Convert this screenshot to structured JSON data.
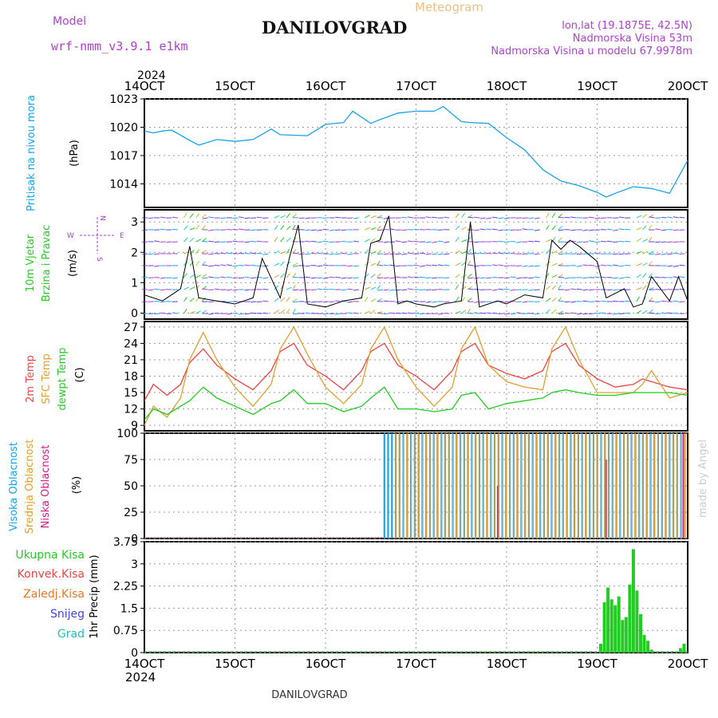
{
  "header": {
    "model_label": "Model",
    "model_name": "wrf-nmm_v3.9.1  e1km",
    "meteogram_label": "Meteogram",
    "station_title": "DANILOVGRAD",
    "lonlat": "lon,lat (19.1875E, 42.5N)",
    "elevation": "Nadmorska Visina 53m",
    "model_elevation": "Nadmorska Visina u modelu 67.9978m"
  },
  "footer": {
    "station": "DANILOVGRAD",
    "made_by": "made by Angel"
  },
  "colors": {
    "pressure": "#1aa3e8",
    "temp2m": "#ee4444",
    "sfc": "#e0a030",
    "dew": "#22cc22",
    "high": "#1aa3e8",
    "mid": "#e0a030",
    "low": "#cc2288",
    "precip": "#22cc22",
    "wind_label": "#a040d0"
  },
  "chart_data": [
    {
      "type": "line",
      "panel": "pressure",
      "ylabel": "Pritisak na nivou mora",
      "unit": "(hPa)",
      "ylim": [
        1011.5,
        1023
      ],
      "yticks": [
        "1014",
        "1017",
        "1020",
        "1023"
      ],
      "top_year": "2024",
      "bottom_year": "2024",
      "xticks": [
        "14OCT",
        "15OCT",
        "16OCT",
        "17OCT",
        "18OCT",
        "19OCT",
        "20OCT"
      ],
      "x_days": [
        14,
        20
      ],
      "series": [
        {
          "x": [
            14.0,
            14.1,
            14.2,
            14.3,
            14.5,
            14.6,
            14.8,
            15.0,
            15.2,
            15.4,
            15.5,
            15.8,
            16.0,
            16.2,
            16.3,
            16.5,
            16.6,
            16.8,
            17.0,
            17.2,
            17.3,
            17.5,
            17.6,
            17.8,
            18.0,
            18.2,
            18.4,
            18.6,
            18.8,
            19.0,
            19.1,
            19.2,
            19.4,
            19.6,
            19.8,
            20.0
          ],
          "values": [
            1019.6,
            1019.4,
            1019.6,
            1019.7,
            1018.6,
            1018.1,
            1018.7,
            1018.5,
            1018.7,
            1019.8,
            1019.2,
            1019.1,
            1020.3,
            1020.5,
            1021.7,
            1020.4,
            1020.8,
            1021.5,
            1021.7,
            1021.7,
            1022.2,
            1020.6,
            1020.5,
            1020.4,
            1018.9,
            1017.6,
            1015.5,
            1014.3,
            1013.8,
            1013.1,
            1012.6,
            1013.0,
            1013.7,
            1013.5,
            1013.0,
            1016.5
          ]
        }
      ]
    },
    {
      "type": "line",
      "panel": "wind",
      "ylabel": "10m Vjetar Brzina i Pravac",
      "unit": "(m/s)",
      "ylim": [
        -0.2,
        3.4
      ],
      "yticks": [
        "0",
        "1",
        "2",
        "3"
      ],
      "compass": {
        "n": "N",
        "s": "S",
        "w": "W",
        "e": "E"
      },
      "series": [
        {
          "name": "speed",
          "x": [
            14.0,
            14.2,
            14.4,
            14.5,
            14.6,
            14.8,
            15.0,
            15.2,
            15.3,
            15.5,
            15.6,
            15.7,
            15.8,
            16.0,
            16.2,
            16.4,
            16.5,
            16.6,
            16.7,
            16.8,
            16.9,
            17.0,
            17.2,
            17.3,
            17.5,
            17.6,
            17.7,
            17.9,
            18.0,
            18.2,
            18.4,
            18.5,
            18.6,
            18.7,
            18.8,
            19.0,
            19.1,
            19.3,
            19.4,
            19.5,
            19.6,
            19.8,
            19.9,
            20.0
          ],
          "values": [
            0.6,
            0.4,
            0.8,
            2.2,
            0.5,
            0.4,
            0.3,
            0.5,
            1.8,
            0.5,
            1.8,
            2.9,
            0.3,
            0.2,
            0.4,
            0.5,
            2.3,
            2.4,
            3.2,
            0.3,
            0.4,
            0.3,
            0.2,
            0.3,
            0.4,
            3.0,
            0.2,
            0.4,
            0.3,
            0.6,
            0.5,
            2.4,
            2.1,
            2.4,
            2.2,
            1.7,
            0.5,
            0.8,
            0.2,
            0.3,
            1.2,
            0.4,
            1.2,
            0.4
          ]
        }
      ]
    },
    {
      "type": "line",
      "panel": "temperature",
      "ylim": [
        8,
        28
      ],
      "yticks": [
        "12",
        "15",
        "18",
        "21",
        "24",
        "27"
      ],
      "yticks_extra": [
        "9"
      ],
      "unit": "(C)",
      "series": [
        {
          "name": "2m Temp",
          "x": [
            14.0,
            14.1,
            14.25,
            14.4,
            14.5,
            14.65,
            14.8,
            15.0,
            15.2,
            15.4,
            15.5,
            15.65,
            15.8,
            16.0,
            16.2,
            16.4,
            16.5,
            16.65,
            16.8,
            17.0,
            17.2,
            17.4,
            17.5,
            17.65,
            17.8,
            18.0,
            18.2,
            18.4,
            18.5,
            18.65,
            18.8,
            19.0,
            19.2,
            19.4,
            19.5,
            19.6,
            19.8,
            20.0
          ],
          "values": [
            13.5,
            16.5,
            14.5,
            16.5,
            20.5,
            23,
            20,
            17.5,
            15.5,
            19,
            22.5,
            24,
            20,
            18,
            15.5,
            19,
            22.5,
            24,
            20,
            18,
            15.5,
            19,
            22.5,
            24,
            20,
            18.5,
            17.5,
            19,
            22.5,
            24,
            20,
            17.5,
            16,
            16.5,
            17.5,
            17,
            16,
            15.5
          ]
        },
        {
          "name": "SFC Temp",
          "x": [
            14.0,
            14.1,
            14.25,
            14.4,
            14.5,
            14.65,
            14.8,
            15.0,
            15.2,
            15.4,
            15.5,
            15.65,
            15.8,
            16.0,
            16.2,
            16.4,
            16.5,
            16.65,
            16.8,
            17.0,
            17.2,
            17.4,
            17.5,
            17.65,
            17.8,
            18.0,
            18.2,
            18.4,
            18.5,
            18.65,
            18.8,
            19.0,
            19.2,
            19.4,
            19.5,
            19.6,
            19.8,
            20.0
          ],
          "values": [
            9,
            12.5,
            10.5,
            14,
            21,
            26,
            21,
            16,
            12.5,
            16.5,
            23,
            27,
            22,
            16,
            13,
            16.5,
            23,
            27,
            21,
            16,
            12.5,
            16,
            23,
            27,
            20,
            17,
            16,
            15.5,
            23,
            27,
            21,
            15,
            15,
            15,
            16.5,
            19,
            14,
            15
          ]
        },
        {
          "name": "dewpt Temp",
          "x": [
            14.0,
            14.1,
            14.25,
            14.4,
            14.5,
            14.65,
            14.8,
            15.0,
            15.2,
            15.4,
            15.5,
            15.65,
            15.8,
            16.0,
            16.2,
            16.4,
            16.5,
            16.65,
            16.8,
            17.0,
            17.2,
            17.4,
            17.5,
            17.65,
            17.8,
            18.0,
            18.2,
            18.4,
            18.5,
            18.65,
            18.8,
            19.0,
            19.2,
            19.4,
            19.5,
            19.6,
            19.8,
            20.0
          ],
          "values": [
            10,
            12,
            11,
            12.5,
            13.5,
            16,
            14,
            12.5,
            11,
            13,
            13.5,
            15.5,
            13,
            13,
            11.5,
            12.5,
            14,
            16,
            12,
            12,
            11.5,
            12,
            14.5,
            15,
            12,
            13,
            13.5,
            14,
            15,
            15.5,
            15,
            14.5,
            14.5,
            15,
            15,
            15,
            15,
            14.5
          ]
        }
      ]
    },
    {
      "type": "bar",
      "panel": "cloud",
      "unit": "(%)",
      "ylim": [
        0,
        100
      ],
      "yticks": [
        "0",
        "25",
        "50",
        "75",
        "100"
      ],
      "series": [
        {
          "name": "Visoka Oblacnost",
          "x_range": [
            16.65,
            20.0
          ],
          "typical": 100
        },
        {
          "name": "Srednja Oblacnost",
          "x_range": [
            16.75,
            20.0
          ],
          "typical": 100
        },
        {
          "name": "Niska Oblacnost",
          "x": [
            17.9,
            19.1,
            19.95
          ],
          "values": [
            50,
            75,
            100
          ]
        }
      ]
    },
    {
      "type": "bar",
      "panel": "precip",
      "ylabel": "1hr Precip",
      "unit": "(mm)",
      "ylim": [
        0,
        3.75
      ],
      "yticks": [
        "0",
        "0.75",
        "1.5",
        "2.25",
        "3",
        "3.75"
      ],
      "legend": [
        "Ukupna Kisa",
        "Konvek.Kisa",
        "Zaledj.Kisa",
        "Snijeg",
        "Grad"
      ],
      "series": [
        {
          "name": "Ukupna Kisa",
          "x": [
            19.04,
            19.08,
            19.12,
            19.16,
            19.2,
            19.24,
            19.28,
            19.32,
            19.36,
            19.4,
            19.44,
            19.48,
            19.52,
            19.56,
            19.6,
            19.92,
            19.96
          ],
          "values": [
            0.3,
            1.7,
            2.2,
            1.8,
            1.6,
            1.9,
            1.1,
            1.2,
            2.3,
            3.5,
            2.1,
            1.3,
            0.6,
            0.4,
            0.1,
            0.15,
            0.3
          ]
        }
      ]
    }
  ]
}
